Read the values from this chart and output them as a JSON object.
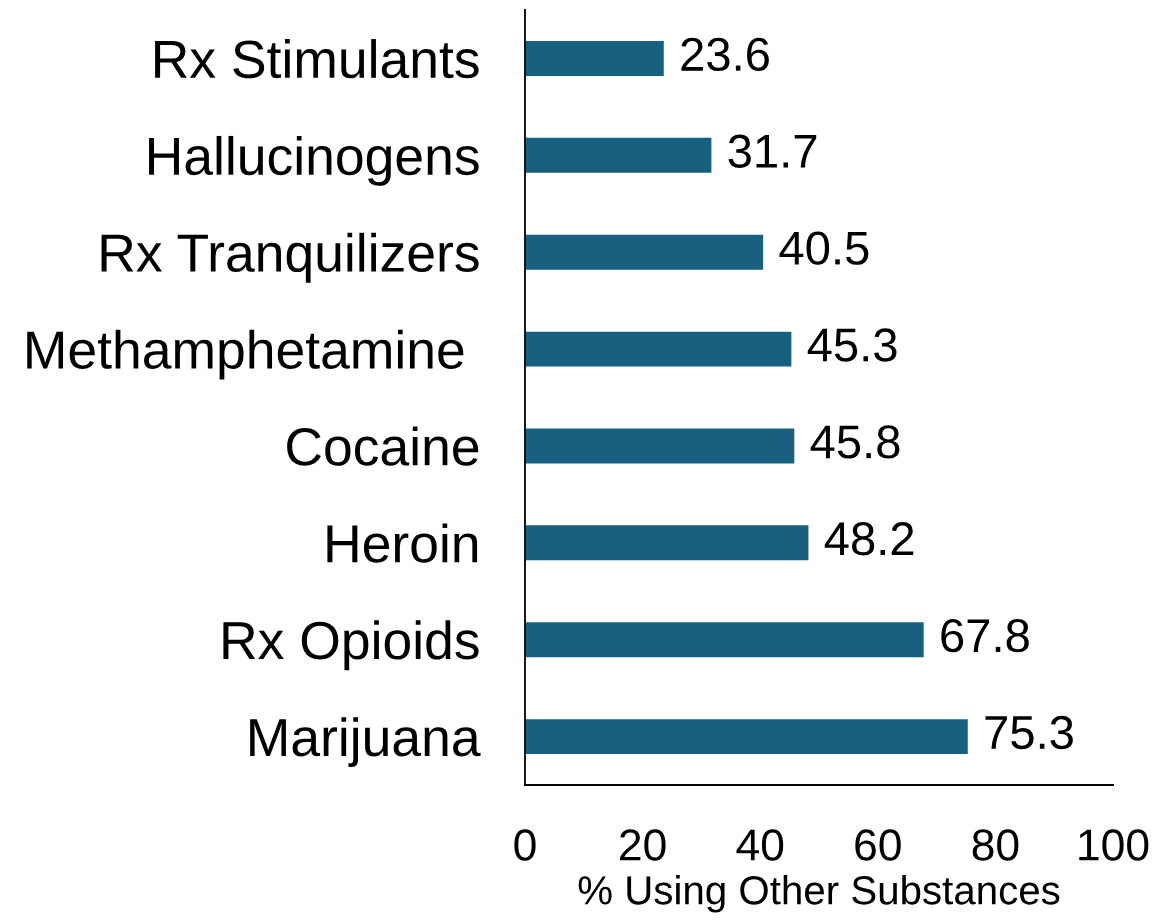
{
  "chart_data": {
    "type": "bar",
    "orientation": "horizontal",
    "xlabel": "% Using Other Substances",
    "categories": [
      "Rx Stimulants",
      "Hallucinogens",
      "Rx Tranquilizers",
      "Methamphetamine ",
      "Cocaine",
      "Heroin",
      "Rx Opioids",
      "Marijuana"
    ],
    "values": [
      23.6,
      31.7,
      40.5,
      45.3,
      45.8,
      48.2,
      67.8,
      75.3
    ],
    "color": "#17607f",
    "xlim": [
      0,
      100
    ],
    "xticks": [
      0,
      20,
      40,
      60,
      80,
      100
    ],
    "data_labels": true,
    "grid": false,
    "legend": false
  }
}
